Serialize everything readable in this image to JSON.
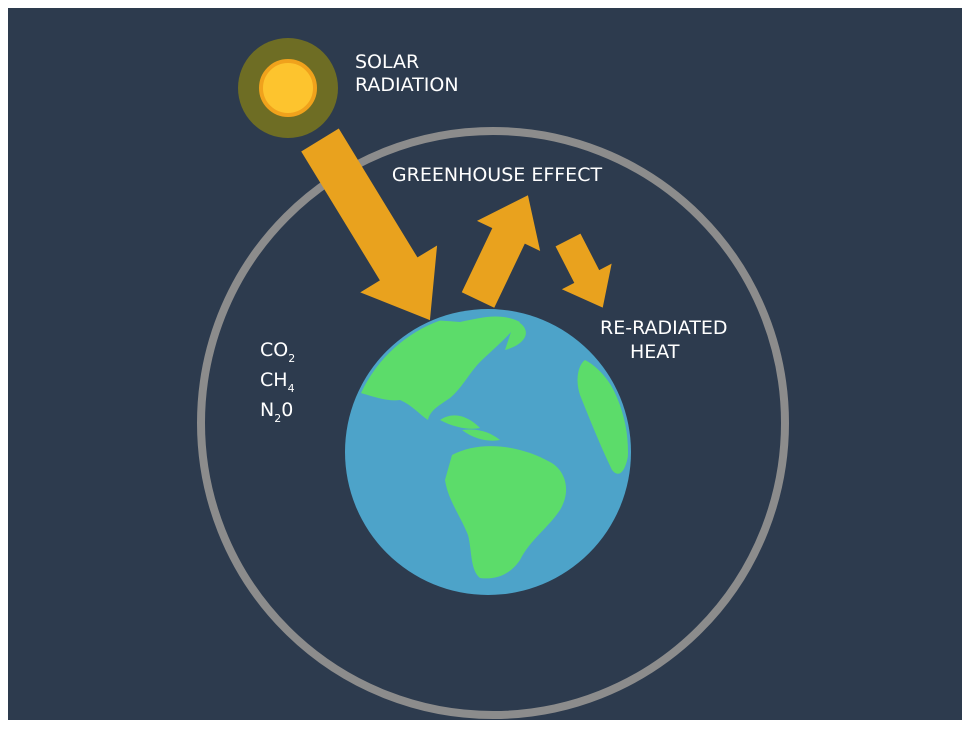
{
  "solar_label": {
    "lines": [
      "SOLAR",
      "RADIATION"
    ]
  },
  "greenhouse_label": "GREENHOUSE EFFECT",
  "reradiated_label": {
    "lines": [
      "RE-RADIATED",
      "HEAT"
    ]
  },
  "gases": [
    [
      {
        "text": "CO"
      },
      {
        "text": "2",
        "sub": true
      }
    ],
    [
      {
        "text": "CH"
      },
      {
        "text": "4",
        "sub": true
      }
    ],
    [
      {
        "text": "N"
      },
      {
        "text": "2",
        "sub": true
      },
      {
        "text": "0"
      }
    ]
  ]
}
